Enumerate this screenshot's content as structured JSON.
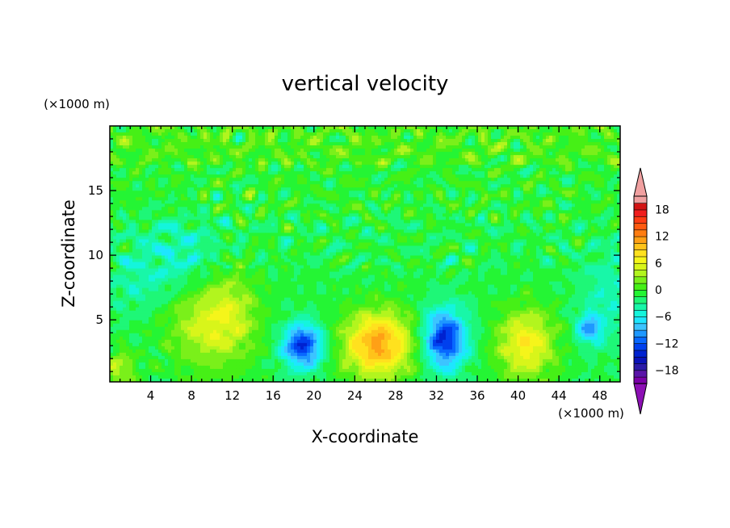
{
  "chart_data": {
    "type": "heatmap",
    "title": "vertical velocity",
    "xlabel": "X-coordinate",
    "ylabel": "Z-coordinate",
    "x_unit": "(×1000 m)",
    "y_unit": "(×1000 m)",
    "xlim": [
      0,
      50
    ],
    "ylim": [
      0.2,
      20
    ],
    "x_ticks": [
      4,
      8,
      12,
      16,
      20,
      24,
      28,
      32,
      36,
      40,
      44,
      48
    ],
    "y_ticks": [
      5,
      10,
      15
    ],
    "colorbar": {
      "levels": [
        -21,
        -19.5,
        -18,
        -16.5,
        -15,
        -13.5,
        -12,
        -10.5,
        -9,
        -7.5,
        -6,
        -4.5,
        -3,
        -1.5,
        0,
        1.5,
        3,
        4.5,
        6,
        7.5,
        9,
        10.5,
        12,
        13.5,
        15,
        16.5,
        18,
        19.5,
        21
      ],
      "labels": [
        -18,
        -12,
        -6,
        0,
        6,
        12,
        18
      ],
      "colors": [
        "#7a00a8",
        "#5a14a8",
        "#2b1aa8",
        "#0a12b8",
        "#0022d0",
        "#0040ee",
        "#0868ff",
        "#1e98ff",
        "#3cc4ff",
        "#1ee6ff",
        "#14f5dc",
        "#18f7a8",
        "#1ef777",
        "#24f534",
        "#46f016",
        "#7af01a",
        "#b2f51e",
        "#d8f51a",
        "#f5f51a",
        "#ffe11e",
        "#ffc31a",
        "#ffa016",
        "#ff7d12",
        "#ff5a10",
        "#ff3c14",
        "#f01e1e",
        "#d21414",
        "#f0a0a0"
      ],
      "under_color": "#8c10b4",
      "over_color": "#f0a0a0"
    },
    "features": [
      {
        "x": 10.0,
        "z": 4.5,
        "value": 6.5
      },
      {
        "x": 26.3,
        "z": 3.1,
        "value": 12.5
      },
      {
        "x": 40.8,
        "z": 3.1,
        "value": 8.5
      },
      {
        "x": 1.0,
        "z": 1.2,
        "value": 5.5
      },
      {
        "x": 18.9,
        "z": 3.0,
        "value": -12.5
      },
      {
        "x": 32.8,
        "z": 3.5,
        "value": -13.0
      },
      {
        "x": 47.0,
        "z": 4.3,
        "value": -8.0
      }
    ]
  }
}
